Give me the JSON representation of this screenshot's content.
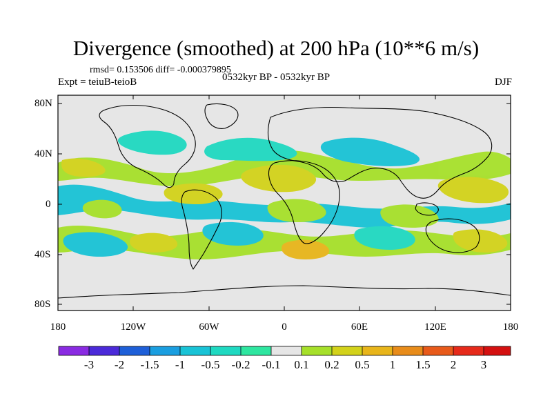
{
  "title": "Divergence (smoothed) at 200 hPa (10**6 m/s)",
  "stats": "rmsd= 0.153506 diff= -0.000379895",
  "experiment": "Expt = teiuB-teioB",
  "period": "0532kyr BP - 0532kyr BP",
  "season": "DJF",
  "lat_labels": [
    "80N",
    "40N",
    "0",
    "40S",
    "80S"
  ],
  "lon_labels": [
    "180",
    "120W",
    "60W",
    "0",
    "60E",
    "120E",
    "180"
  ],
  "colorbar": {
    "labels": [
      "-3",
      "-2",
      "-1.5",
      "-1",
      "-0.5",
      "-0.2",
      "-0.1",
      "0.1",
      "0.2",
      "0.5",
      "1",
      "1.5",
      "2",
      "3"
    ],
    "colors": [
      "#8a2be2",
      "#4b2ad9",
      "#1e5fd8",
      "#1a9ee0",
      "#19c3d6",
      "#1fd9c1",
      "#2ee6a0",
      "#e6e6e6",
      "#a6e02a",
      "#d3d21a",
      "#e8b51a",
      "#e88c1a",
      "#e85a1a",
      "#e62a1a",
      "#d41010"
    ]
  },
  "colors": {
    "neutral": "#e6e6e6",
    "cyan": "#19c3d6",
    "teal": "#1fd9c1",
    "lime": "#a6e02a",
    "olive": "#d3d21a",
    "orange": "#e8b51a"
  }
}
